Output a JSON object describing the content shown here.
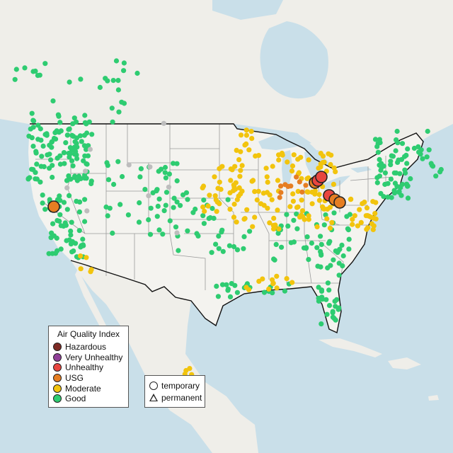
{
  "legend": {
    "title": "Air Quality Index",
    "categories": [
      {
        "label": "Hazardous",
        "color": "#7e2b25"
      },
      {
        "label": "Very Unhealthy",
        "color": "#8f3f97"
      },
      {
        "label": "Unhealthy",
        "color": "#e8463f"
      },
      {
        "label": "USG",
        "color": "#e67e22"
      },
      {
        "label": "Moderate",
        "color": "#f2c40d"
      },
      {
        "label": "Good",
        "color": "#2ecc71"
      }
    ],
    "monitor_types": [
      {
        "label": "temporary",
        "shape": "circle"
      },
      {
        "label": "permanent",
        "shape": "triangle"
      }
    ]
  },
  "map_colors": {
    "water": "#c9dfe9",
    "land": "#efeee9",
    "usa_land": "#f4f3ef",
    "state_border": "#9a9a9a",
    "country_border": "#111111",
    "no_data": "#bdbdbd"
  }
}
